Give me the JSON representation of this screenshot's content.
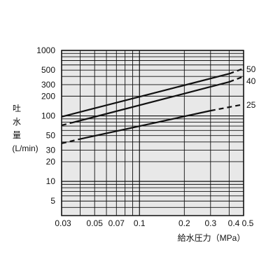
{
  "chart_data": {
    "type": "line",
    "x_scale": "log",
    "y_scale": "log",
    "xlim": [
      0.03,
      0.5
    ],
    "ylim": [
      3,
      1000
    ],
    "grid": true,
    "legend": "none",
    "xlabel": "給水圧力（MPa）",
    "ylabel_lines": [
      "吐",
      "水",
      "量",
      "(L/min)"
    ],
    "x_ticks": [
      {
        "value": 0.03,
        "label": "0.03"
      },
      {
        "value": 0.05,
        "label": "0.05"
      },
      {
        "value": 0.07,
        "label": "0.07"
      },
      {
        "value": 0.1,
        "label": "0.1"
      },
      {
        "value": 0.2,
        "label": "0.2"
      },
      {
        "value": 0.3,
        "label": "0.3"
      },
      {
        "value": 0.4,
        "label": "0.4"
      },
      {
        "value": 0.5,
        "label": "0.5"
      }
    ],
    "y_ticks": [
      {
        "value": 5,
        "label": "5"
      },
      {
        "value": 10,
        "label": "10"
      },
      {
        "value": 20,
        "label": "20"
      },
      {
        "value": 30,
        "label": "30"
      },
      {
        "value": 50,
        "label": "50"
      },
      {
        "value": 100,
        "label": "100"
      },
      {
        "value": 200,
        "label": "200"
      },
      {
        "value": 300,
        "label": "300"
      },
      {
        "value": 500,
        "label": "500"
      },
      {
        "value": 1000,
        "label": "1000"
      }
    ],
    "series": [
      {
        "name": "50",
        "solid_range": [
          0.03,
          0.4
        ],
        "points": [
          {
            "x": 0.03,
            "y": 97
          },
          {
            "x": 0.05,
            "y": 130
          },
          {
            "x": 0.07,
            "y": 160
          },
          {
            "x": 0.1,
            "y": 195
          },
          {
            "x": 0.2,
            "y": 300
          },
          {
            "x": 0.3,
            "y": 370
          },
          {
            "x": 0.4,
            "y": 440
          },
          {
            "x": 0.5,
            "y": 530
          }
        ]
      },
      {
        "name": "40",
        "solid_range": [
          0.035,
          0.4
        ],
        "points": [
          {
            "x": 0.03,
            "y": 72
          },
          {
            "x": 0.05,
            "y": 95
          },
          {
            "x": 0.07,
            "y": 115
          },
          {
            "x": 0.1,
            "y": 140
          },
          {
            "x": 0.2,
            "y": 220
          },
          {
            "x": 0.3,
            "y": 285
          },
          {
            "x": 0.4,
            "y": 330
          },
          {
            "x": 0.5,
            "y": 400
          }
        ]
      },
      {
        "name": "25",
        "solid_range": [
          0.04,
          0.3
        ],
        "points": [
          {
            "x": 0.03,
            "y": 38
          },
          {
            "x": 0.05,
            "y": 50
          },
          {
            "x": 0.07,
            "y": 60
          },
          {
            "x": 0.1,
            "y": 72
          },
          {
            "x": 0.2,
            "y": 100
          },
          {
            "x": 0.3,
            "y": 120
          },
          {
            "x": 0.4,
            "y": 135
          },
          {
            "x": 0.5,
            "y": 150
          }
        ]
      }
    ]
  }
}
